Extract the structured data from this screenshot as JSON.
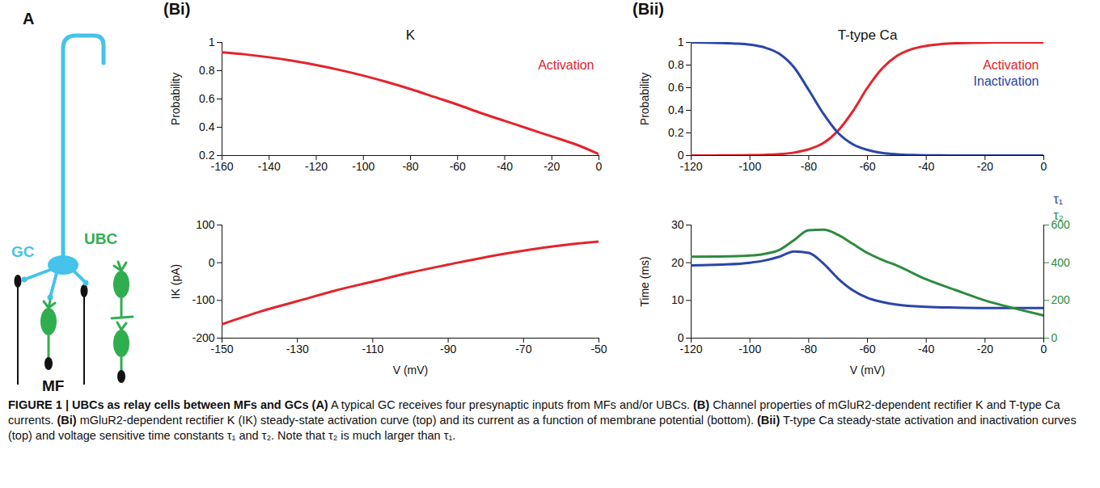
{
  "diagram": {
    "label": "A",
    "cells": [
      {
        "name": "GC",
        "color": "#45c3ea"
      },
      {
        "name": "UBC",
        "color": "#2fae4f"
      }
    ],
    "fibers": {
      "name": "MF",
      "color": "#111111"
    }
  },
  "chart_data": [
    {
      "panel_label": "(Bi)",
      "type": "line",
      "title": "K",
      "ylabel": "Probability",
      "x": [
        -160,
        -150,
        -140,
        -130,
        -120,
        -110,
        -100,
        -90,
        -80,
        -70,
        -60,
        -50,
        -40,
        -30,
        -20,
        -10,
        0
      ],
      "xlim": [
        -160,
        0
      ],
      "xticks": [
        -160,
        -140,
        -120,
        -100,
        -80,
        -60,
        -40,
        -20,
        0
      ],
      "ylim": [
        0.2,
        1
      ],
      "yticks": [
        0.2,
        0.4,
        0.6,
        0.8,
        1
      ],
      "legend": "top-right",
      "series": [
        {
          "name": "Activation",
          "color": "#e3242b",
          "values": [
            0.93,
            0.915,
            0.895,
            0.87,
            0.84,
            0.805,
            0.765,
            0.72,
            0.67,
            0.615,
            0.56,
            0.5,
            0.445,
            0.39,
            0.335,
            0.28,
            0.21
          ]
        }
      ]
    },
    {
      "type": "line",
      "xlabel": "V (mV)",
      "ylabel": "IK (pA)",
      "x": [
        -150,
        -140,
        -130,
        -120,
        -110,
        -100,
        -90,
        -80,
        -70,
        -60,
        -50
      ],
      "xlim": [
        -150,
        -50
      ],
      "xticks": [
        -150,
        -130,
        -110,
        -90,
        -70,
        -50
      ],
      "ylim": [
        -200,
        100
      ],
      "yticks": [
        -200,
        -100,
        0,
        100
      ],
      "series": [
        {
          "name": "IK",
          "color": "#e3242b",
          "values": [
            -163,
            -130,
            -102,
            -74,
            -50,
            -26,
            -5,
            15,
            32,
            46,
            56
          ]
        }
      ]
    },
    {
      "panel_label": "(Bii)",
      "type": "line",
      "title": "T-type Ca",
      "ylabel": "Probability",
      "x": [
        -120,
        -115,
        -110,
        -105,
        -100,
        -95,
        -90,
        -85,
        -80,
        -75,
        -70,
        -65,
        -60,
        -55,
        -50,
        -45,
        -40,
        -35,
        -30,
        -25,
        -20,
        -15,
        -10,
        -5,
        0
      ],
      "xlim": [
        -120,
        0
      ],
      "xticks": [
        -120,
        -100,
        -80,
        -60,
        -40,
        -20,
        0
      ],
      "ylim": [
        0,
        1
      ],
      "yticks": [
        0,
        0.2,
        0.4,
        0.6,
        0.8,
        1
      ],
      "legend": "top-right",
      "series": [
        {
          "name": "Activation",
          "color": "#e3242b",
          "values": [
            0,
            0,
            0.001,
            0.002,
            0.003,
            0.006,
            0.012,
            0.026,
            0.055,
            0.11,
            0.22,
            0.39,
            0.6,
            0.77,
            0.88,
            0.94,
            0.97,
            0.985,
            0.993,
            0.997,
            0.999,
            1,
            1,
            1,
            1
          ]
        },
        {
          "name": "Inactivation",
          "color": "#2b46a8",
          "values": [
            1,
            0.998,
            0.995,
            0.99,
            0.98,
            0.955,
            0.9,
            0.78,
            0.58,
            0.37,
            0.2,
            0.1,
            0.05,
            0.023,
            0.011,
            0.005,
            0.002,
            0.001,
            0,
            0,
            0,
            0,
            0,
            0,
            0
          ]
        }
      ]
    },
    {
      "type": "line",
      "xlabel": "V (mV)",
      "ylabel": "Time (ms)",
      "x": [
        -120,
        -110,
        -100,
        -95,
        -90,
        -85,
        -80,
        -75,
        -70,
        -65,
        -60,
        -55,
        -50,
        -40,
        -30,
        -20,
        -10,
        0
      ],
      "xlim": [
        -120,
        0
      ],
      "xticks": [
        -120,
        -100,
        -80,
        -60,
        -40,
        -20,
        0
      ],
      "ylim": [
        0,
        30
      ],
      "yticks": [
        0,
        10,
        20,
        30
      ],
      "y2lim": [
        0,
        600
      ],
      "y2ticks": [
        0,
        200,
        400,
        600
      ],
      "legend": "right",
      "series": [
        {
          "name": "τ₁",
          "color": "#2b46a8",
          "values": [
            19.3,
            19.5,
            20,
            20.6,
            21.6,
            23,
            22.6,
            19.8,
            15.8,
            12.7,
            10.7,
            9.6,
            8.9,
            8.3,
            8.1,
            8,
            8,
            8
          ]
        },
        {
          "name": "τ₂",
          "color": "#2e8b3e",
          "axis": "y2",
          "values": [
            432,
            433,
            438,
            447,
            468,
            520,
            572,
            575,
            548,
            500,
            452,
            415,
            385,
            312,
            255,
            200,
            158,
            120
          ]
        }
      ]
    }
  ],
  "caption": {
    "title": "FIGURE 1 | UBCs as relay cells between MFs and GCs",
    "parts": [
      {
        "label": "(A)",
        "text": "A typical GC receives four presynaptic inputs from MFs and/or UBCs."
      },
      {
        "label": "(B)",
        "text": "Channel properties of mGluR2-dependent rectifier K and T-type Ca currents."
      },
      {
        "label": "(Bi)",
        "text": "mGluR2-dependent rectifier K (IK) steady-state activation curve (top) and its current as a function of membrane potential (bottom)."
      },
      {
        "label": "(Bii)",
        "text": "T-type Ca steady-state activation and inactivation curves (top) and voltage sensitive time constants τ₁ and τ₂. Note that τ₂ is much larger than τ₁."
      }
    ]
  }
}
